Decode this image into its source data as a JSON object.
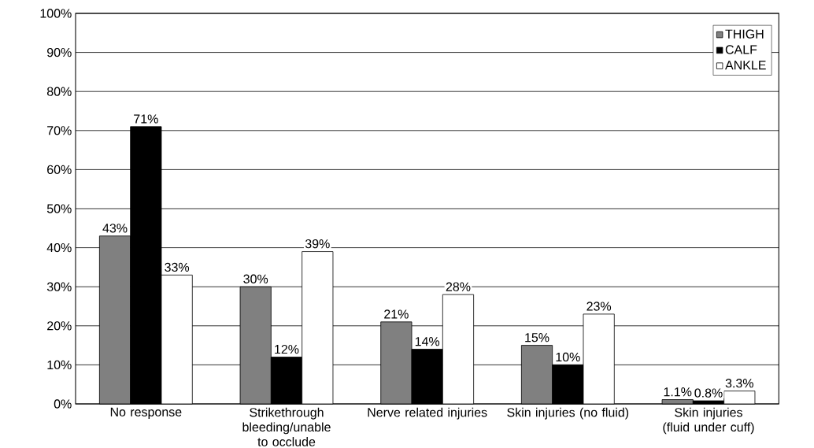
{
  "chart_data": {
    "type": "bar",
    "categories": [
      "No response",
      "Strikethrough bleeding/unable to occlude",
      "Nerve related injuries",
      "Skin injuries (no fluid)",
      "Skin injuries (fluid under cuff)"
    ],
    "series": [
      {
        "name": "THIGH",
        "color": "#808080",
        "values": [
          43,
          30,
          21,
          15,
          1.1
        ],
        "value_labels": [
          "43%",
          "30%",
          "21%",
          "15%",
          "1.1%"
        ]
      },
      {
        "name": "CALF",
        "color": "#000000",
        "values": [
          71,
          12,
          14,
          10,
          0.8
        ],
        "value_labels": [
          "71%",
          "12%",
          "14%",
          "10%",
          "0.8%"
        ]
      },
      {
        "name": "ANKLE",
        "color": "#ffffff",
        "values": [
          33,
          39,
          28,
          23,
          3.3
        ],
        "value_labels": [
          "33%",
          "39%",
          "28%",
          "23%",
          "3.3%"
        ]
      }
    ],
    "ylim": [
      0,
      100
    ],
    "yticks": [
      {
        "value": 0,
        "label": "0%"
      },
      {
        "value": 10,
        "label": "10%"
      },
      {
        "value": 20,
        "label": "20%"
      },
      {
        "value": 30,
        "label": "30%"
      },
      {
        "value": 40,
        "label": "40%"
      },
      {
        "value": 50,
        "label": "50%"
      },
      {
        "value": 60,
        "label": "60%"
      },
      {
        "value": 70,
        "label": "70%"
      },
      {
        "value": 80,
        "label": "80%"
      },
      {
        "value": 90,
        "label": "90%"
      },
      {
        "value": 100,
        "label": "100%"
      }
    ],
    "grid": "y",
    "legend": "top right"
  }
}
